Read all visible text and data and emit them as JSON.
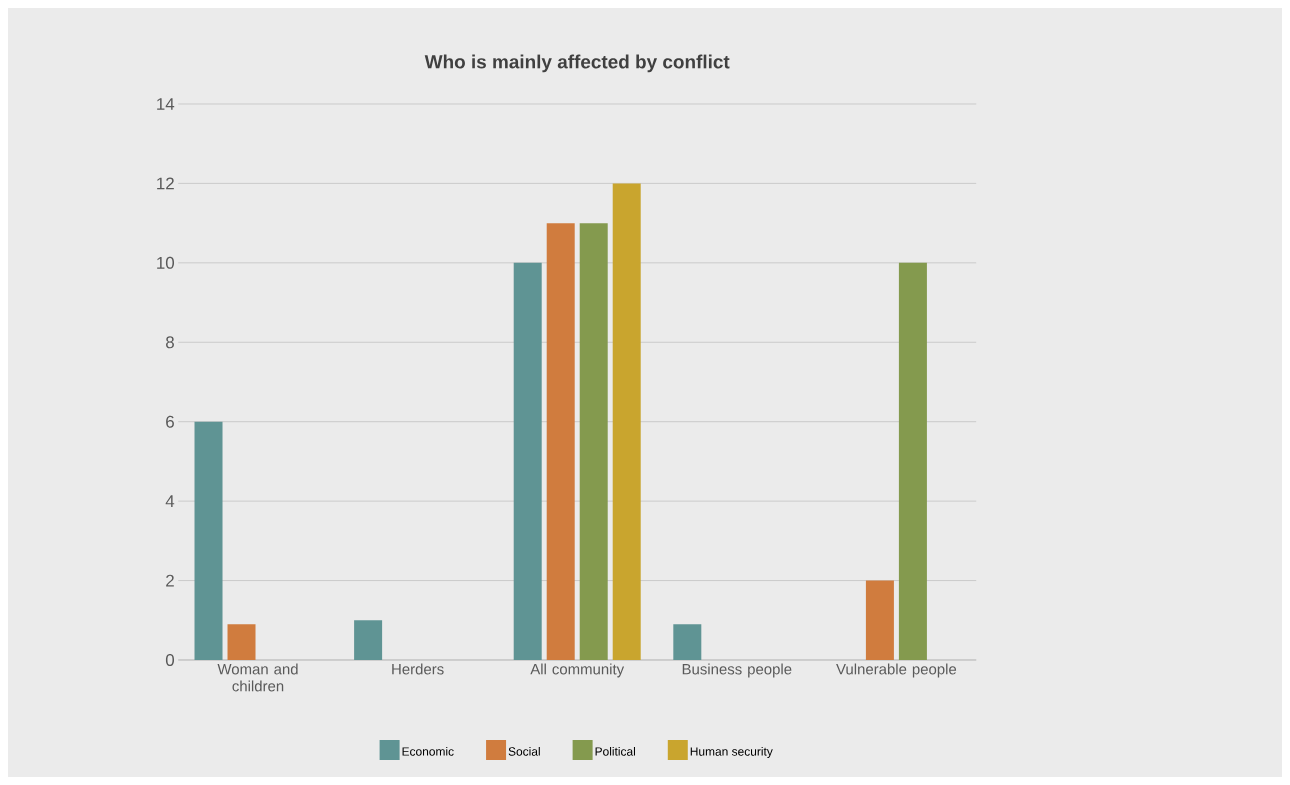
{
  "chart_data": {
    "type": "bar",
    "title": "Who is mainly affected by conflict",
    "categories": [
      "Woman and children",
      "Herders",
      "All community",
      "Business people",
      "Vulnerable people"
    ],
    "series": [
      {
        "name": "Economic",
        "color": "#5f9494",
        "values": [
          6,
          1,
          10,
          0.9,
          null
        ]
      },
      {
        "name": "Social",
        "color": "#d07c3e",
        "values": [
          0.9,
          null,
          11,
          null,
          2
        ]
      },
      {
        "name": "Political",
        "color": "#849a4e",
        "values": [
          null,
          null,
          11,
          null,
          10
        ]
      },
      {
        "name": "Human security",
        "color": "#c9a52e",
        "values": [
          null,
          null,
          12,
          null,
          null
        ]
      }
    ],
    "ylim": [
      0,
      14
    ],
    "yticks": [
      0,
      2,
      4,
      6,
      8,
      10,
      12,
      14
    ],
    "grid": "y",
    "legend": "bottom"
  }
}
